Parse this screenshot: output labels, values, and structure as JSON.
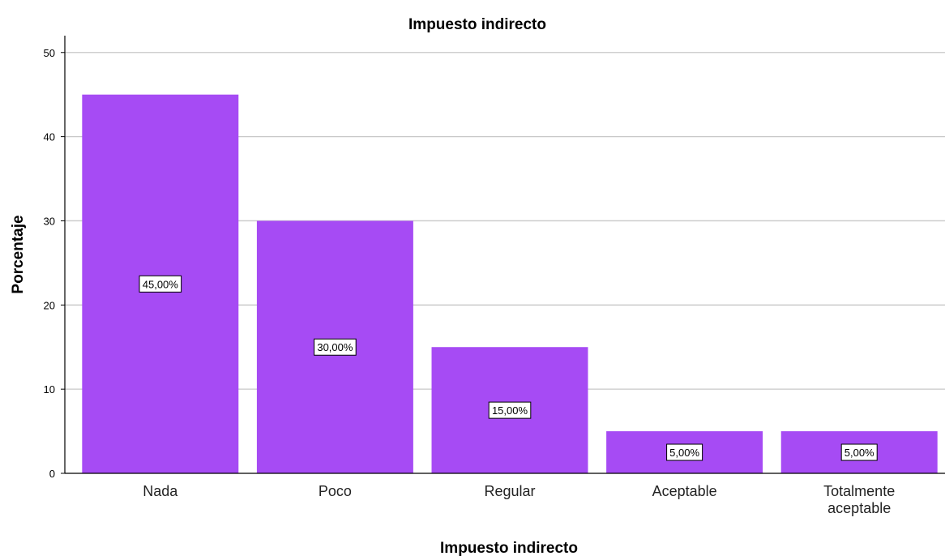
{
  "chart_data": {
    "type": "bar",
    "title": "Impuesto indirecto",
    "xlabel": "Impuesto indirecto",
    "ylabel": "Porcentaje",
    "categories": [
      "Nada",
      "Poco",
      "Regular",
      "Aceptable",
      "Totalmente aceptable"
    ],
    "category_label_lines": [
      [
        "Nada"
      ],
      [
        "Poco"
      ],
      [
        "Regular"
      ],
      [
        "Aceptable"
      ],
      [
        "Totalmente",
        "aceptable"
      ]
    ],
    "values": [
      45,
      30,
      15,
      5,
      5
    ],
    "data_labels": [
      "45,00%",
      "30,00%",
      "15,00%",
      "5,00%",
      "5,00%"
    ],
    "ylim": [
      0,
      52
    ],
    "yticks": [
      0,
      10,
      20,
      30,
      40,
      50
    ],
    "grid": true,
    "bar_color": "#a64bf4",
    "grid_color": "#c8c8c8",
    "legend": "none"
  }
}
